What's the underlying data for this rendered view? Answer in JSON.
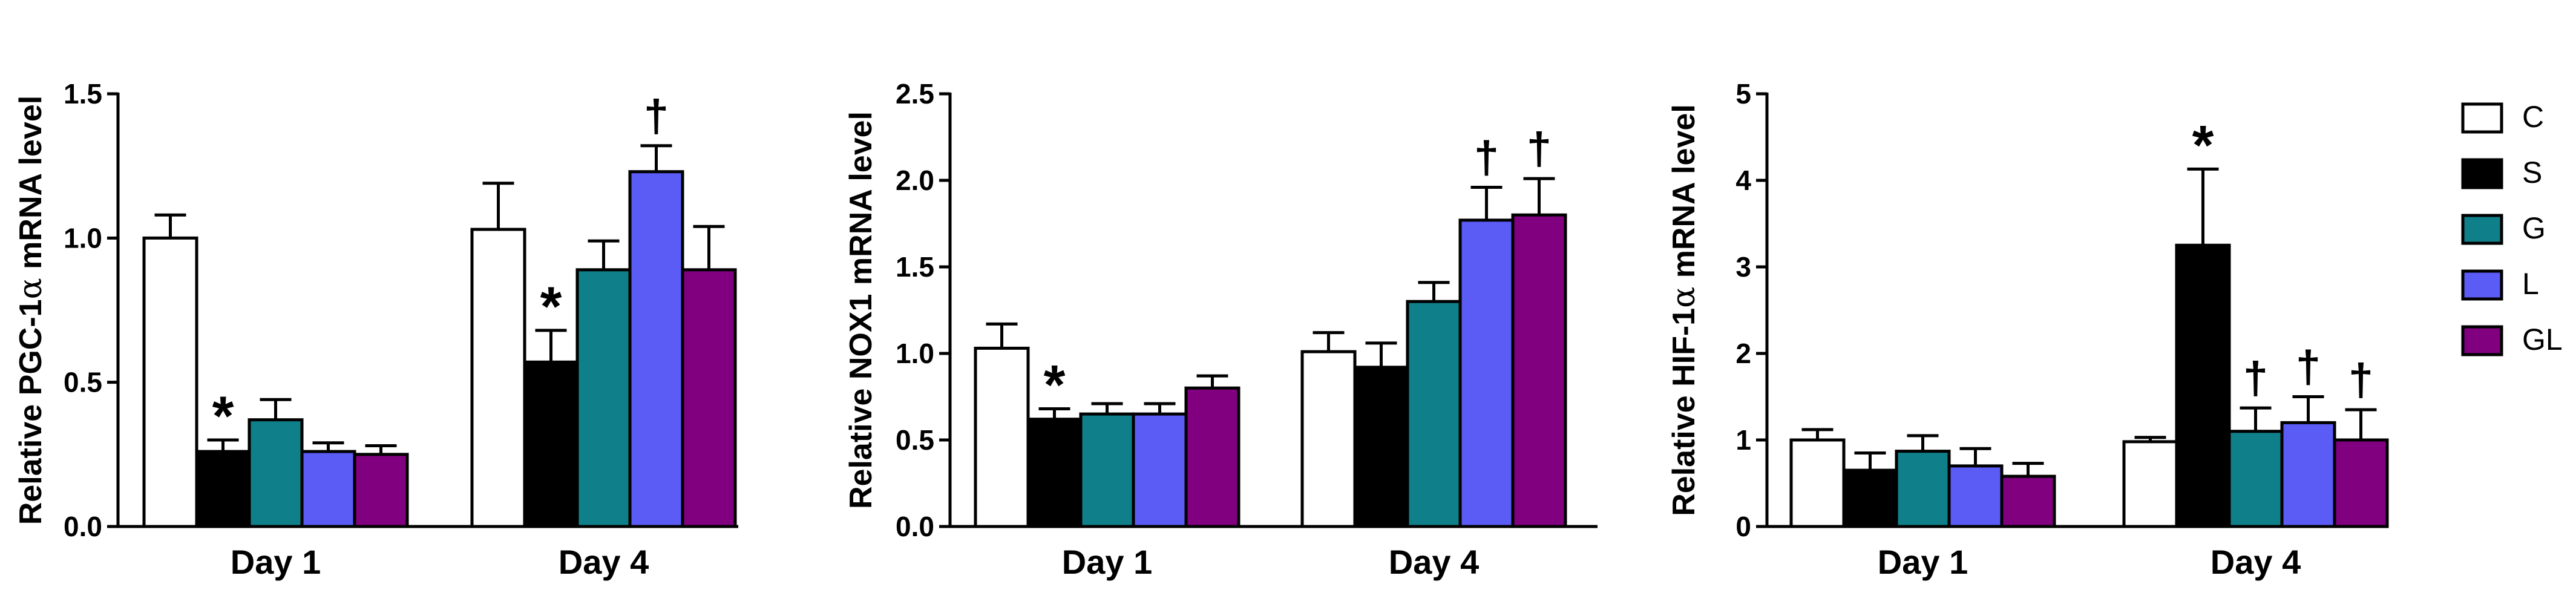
{
  "legend": [
    {
      "key": "C",
      "label": "C",
      "color": "#ffffff"
    },
    {
      "key": "S",
      "label": "S",
      "color": "#000000"
    },
    {
      "key": "G",
      "label": "G",
      "color": "#0f7f8a"
    },
    {
      "key": "L",
      "label": "L",
      "color": "#5b5bf5"
    },
    {
      "key": "GL",
      "label": "GL",
      "color": "#800080"
    }
  ],
  "chart_data": [
    {
      "type": "bar",
      "ylabel_pre": "Relative PGC-1",
      "ylabel_greek": "α",
      "ylabel_post": " mRNA level",
      "categories": [
        "Day 1",
        "Day 4"
      ],
      "ylim": [
        0,
        1.5
      ],
      "yticks": [
        0,
        0.5,
        1.0,
        1.5
      ],
      "yticklabels": [
        "0.0",
        "0.5",
        "1.0",
        "1.5"
      ],
      "series": [
        {
          "name": "C",
          "values": [
            1.0,
            1.03
          ],
          "errors": [
            0.08,
            0.16
          ],
          "marks": [
            "",
            ""
          ]
        },
        {
          "name": "S",
          "values": [
            0.26,
            0.57
          ],
          "errors": [
            0.04,
            0.11
          ],
          "marks": [
            "*",
            "*"
          ]
        },
        {
          "name": "G",
          "values": [
            0.37,
            0.89
          ],
          "errors": [
            0.07,
            0.1
          ],
          "marks": [
            "",
            ""
          ]
        },
        {
          "name": "L",
          "values": [
            0.26,
            1.23
          ],
          "errors": [
            0.03,
            0.09
          ],
          "marks": [
            "",
            "†"
          ]
        },
        {
          "name": "GL",
          "values": [
            0.25,
            0.89
          ],
          "errors": [
            0.03,
            0.15
          ],
          "marks": [
            "",
            ""
          ]
        }
      ]
    },
    {
      "type": "bar",
      "ylabel_pre": "Relative NOX1 mRNA level",
      "ylabel_greek": "",
      "ylabel_post": "",
      "categories": [
        "Day 1",
        "Day 4"
      ],
      "ylim": [
        0,
        2.5
      ],
      "yticks": [
        0,
        0.5,
        1.0,
        1.5,
        2.0,
        2.5
      ],
      "yticklabels": [
        "0.0",
        "0.5",
        "1.0",
        "1.5",
        "2.0",
        "2.5"
      ],
      "series": [
        {
          "name": "C",
          "values": [
            1.03,
            1.01
          ],
          "errors": [
            0.14,
            0.11
          ],
          "marks": [
            "",
            ""
          ]
        },
        {
          "name": "S",
          "values": [
            0.62,
            0.92
          ],
          "errors": [
            0.06,
            0.14
          ],
          "marks": [
            "*",
            ""
          ]
        },
        {
          "name": "G",
          "values": [
            0.65,
            1.3
          ],
          "errors": [
            0.06,
            0.11
          ],
          "marks": [
            "",
            ""
          ]
        },
        {
          "name": "L",
          "values": [
            0.65,
            1.77
          ],
          "errors": [
            0.06,
            0.19
          ],
          "marks": [
            "",
            "†"
          ]
        },
        {
          "name": "GL",
          "values": [
            0.8,
            1.8
          ],
          "errors": [
            0.07,
            0.21
          ],
          "marks": [
            "",
            "†"
          ]
        }
      ]
    },
    {
      "type": "bar",
      "ylabel_pre": "Relative HIF-1",
      "ylabel_greek": "α",
      "ylabel_post": " mRNA level",
      "categories": [
        "Day 1",
        "Day 4"
      ],
      "ylim": [
        0,
        5
      ],
      "yticks": [
        0,
        1,
        2,
        3,
        4,
        5
      ],
      "yticklabels": [
        "0",
        "1",
        "2",
        "3",
        "4",
        "5"
      ],
      "series": [
        {
          "name": "C",
          "values": [
            1.0,
            0.98
          ],
          "errors": [
            0.12,
            0.05
          ],
          "marks": [
            "",
            ""
          ]
        },
        {
          "name": "S",
          "values": [
            0.65,
            3.25
          ],
          "errors": [
            0.2,
            0.88
          ],
          "marks": [
            "",
            "*"
          ]
        },
        {
          "name": "G",
          "values": [
            0.87,
            1.1
          ],
          "errors": [
            0.18,
            0.27
          ],
          "marks": [
            "",
            "†"
          ]
        },
        {
          "name": "L",
          "values": [
            0.7,
            1.2
          ],
          "errors": [
            0.2,
            0.3
          ],
          "marks": [
            "",
            "†"
          ]
        },
        {
          "name": "GL",
          "values": [
            0.58,
            1.0
          ],
          "errors": [
            0.15,
            0.35
          ],
          "marks": [
            "",
            "†"
          ]
        }
      ]
    }
  ]
}
